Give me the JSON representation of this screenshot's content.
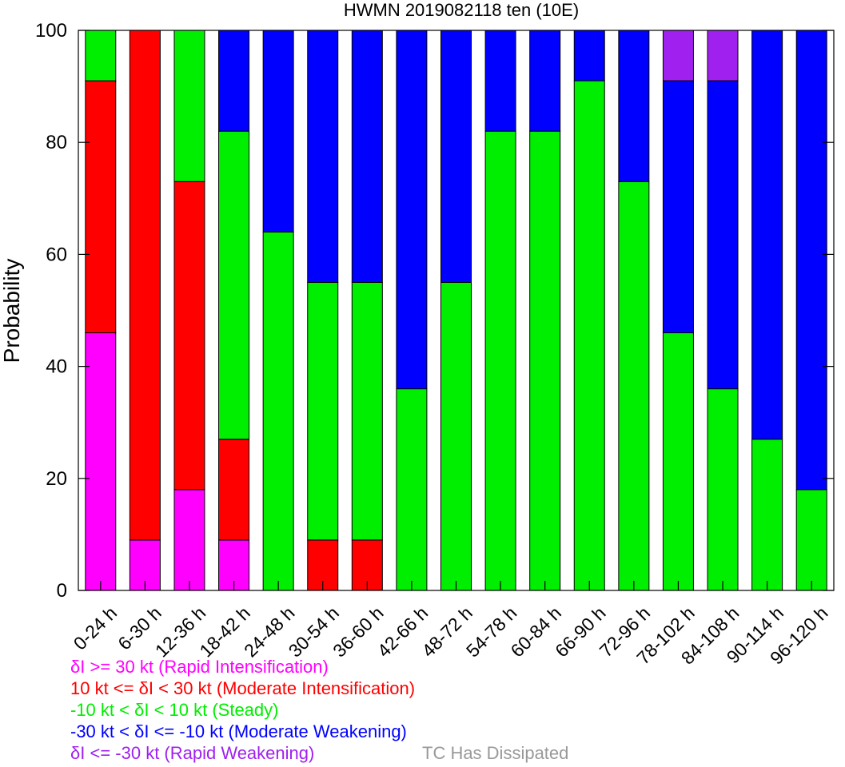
{
  "chart_data": {
    "type": "bar",
    "stacked": true,
    "title": "HWMN 2019082118 ten (10E)",
    "xlabel": "",
    "ylabel": "Probability",
    "ylim": [
      0,
      100
    ],
    "yticks": [
      0,
      20,
      40,
      60,
      80,
      100
    ],
    "categories": [
      "0-24 h",
      "6-30 h",
      "12-36 h",
      "18-42 h",
      "24-48 h",
      "30-54 h",
      "36-60 h",
      "42-66 h",
      "48-72 h",
      "54-78 h",
      "60-84 h",
      "66-90 h",
      "72-96 h",
      "78-102 h",
      "84-108 h",
      "90-114 h",
      "96-120 h"
    ],
    "series": [
      {
        "name": "δI >= 30 kt (Rapid Intensification)",
        "color": "#ff00ff",
        "values": [
          46,
          9,
          18,
          9,
          0,
          0,
          0,
          0,
          0,
          0,
          0,
          0,
          0,
          0,
          0,
          0,
          0
        ]
      },
      {
        "name": "10 kt <= δI < 30 kt (Moderate Intensification)",
        "color": "#ff0000",
        "values": [
          45,
          91,
          55,
          18,
          0,
          9,
          9,
          0,
          0,
          0,
          0,
          0,
          0,
          0,
          0,
          0,
          0
        ]
      },
      {
        "name": "-10 kt < δI < 10 kt (Steady)",
        "color": "#00ee00",
        "values": [
          9,
          0,
          27,
          55,
          64,
          46,
          46,
          36,
          55,
          82,
          82,
          91,
          73,
          46,
          36,
          27,
          18
        ]
      },
      {
        "name": "-30 kt < δI <= -10 kt (Moderate Weakening)",
        "color": "#0000ff",
        "values": [
          0,
          0,
          0,
          18,
          36,
          45,
          45,
          64,
          45,
          18,
          18,
          9,
          27,
          45,
          55,
          73,
          82
        ]
      },
      {
        "name": "δI <= -30 kt (Rapid Weakening)",
        "color": "#a020f0",
        "values": [
          0,
          0,
          0,
          0,
          0,
          0,
          0,
          0,
          0,
          0,
          0,
          0,
          0,
          9,
          9,
          0,
          0
        ]
      },
      {
        "name": "TC Has Dissipated",
        "color": "#999999",
        "values": [
          0,
          0,
          0,
          0,
          0,
          0,
          0,
          0,
          0,
          0,
          0,
          0,
          0,
          0,
          0,
          0,
          0
        ]
      }
    ],
    "grid": false
  },
  "legend": [
    {
      "text": "δI >= 30 kt (Rapid Intensification)",
      "color": "#ff00ff"
    },
    {
      "text": "10 kt <= δI < 30 kt (Moderate Intensification)",
      "color": "#ff0000"
    },
    {
      "text": "-10 kt < δI < 10 kt (Steady)",
      "color": "#00ee00"
    },
    {
      "text": "-30 kt < δI <= -10 kt (Moderate Weakening)",
      "color": "#0000ff"
    },
    {
      "text": "δI <= -30 kt (Rapid Weakening)",
      "color": "#a020f0"
    }
  ],
  "dissipated_label": {
    "text": "TC Has Dissipated",
    "color": "#999999"
  }
}
